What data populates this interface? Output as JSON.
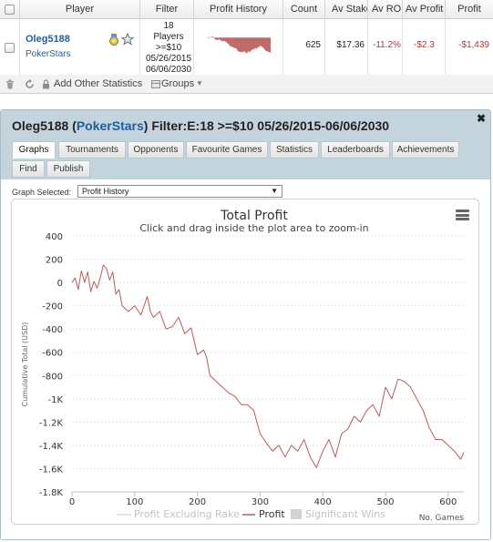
{
  "table": {
    "headers": [
      "Player",
      "Filter",
      "Profit History",
      "Count",
      "Av Stake",
      "Av ROI",
      "Av Profit",
      "Profit"
    ],
    "row": {
      "player": "Oleg5188",
      "site": "PokerStars",
      "filter_lines": [
        "18",
        "Players",
        ">=$10",
        "05/26/2015",
        "06/06/2030"
      ],
      "count": "625",
      "av_stake": "$17.36",
      "av_roi": "-11.2%",
      "av_profit": "-$2.3",
      "profit": "-$1,439"
    }
  },
  "toolbar": {
    "add_other_statistics": "Add Other Statistics",
    "groups": "Groups"
  },
  "panel": {
    "player": "Oleg5188",
    "site": "PokerStars",
    "filter": "Filter:E:18 >=$10 05/26/2015-06/06/2030",
    "tabs": [
      "Graphs",
      "Tournaments",
      "Opponents",
      "Favourite Games",
      "Statistics",
      "Leaderboards",
      "Achievements",
      "Find",
      "Publish"
    ],
    "active_tab": "Graphs",
    "graph_selected_label": "Graph Selected:",
    "graph_selected_value": "Profit History"
  },
  "chart_data": {
    "type": "line",
    "title": "Total Profit",
    "subtitle": "Click and drag inside the plot area to zoom-in",
    "ylabel": "Cumulative Total (USD)",
    "xlabel": "No. Games",
    "xlim": [
      0,
      625
    ],
    "ylim": [
      -1800,
      400
    ],
    "xticks": [
      0,
      100,
      200,
      300,
      400,
      500,
      600
    ],
    "yticks": [
      400,
      200,
      0,
      -200,
      -400,
      -600,
      -800,
      -1000,
      -1200,
      -1400,
      -1600,
      -1800
    ],
    "ytick_labels": [
      "400",
      "200",
      "0",
      "-200",
      "-400",
      "-600",
      "-800",
      "-1K",
      "-1.2K",
      "-1.4K",
      "-1.6K",
      "-1.8K"
    ],
    "grid": true,
    "legend": [
      "Profit Excluding Rake",
      "Profit",
      "Significant Wins"
    ],
    "series": [
      {
        "name": "Profit",
        "color": "#b85c5c",
        "x": [
          0,
          5,
          10,
          15,
          20,
          25,
          30,
          35,
          40,
          45,
          50,
          55,
          60,
          65,
          70,
          75,
          80,
          90,
          100,
          110,
          120,
          125,
          130,
          140,
          150,
          160,
          170,
          180,
          190,
          200,
          210,
          215,
          220,
          230,
          240,
          250,
          260,
          270,
          280,
          290,
          300,
          310,
          320,
          330,
          340,
          350,
          360,
          370,
          380,
          390,
          400,
          410,
          420,
          430,
          440,
          450,
          460,
          470,
          480,
          490,
          500,
          510,
          520,
          530,
          540,
          550,
          560,
          570,
          580,
          590,
          600,
          610,
          620,
          625
        ],
        "y": [
          0,
          40,
          -60,
          100,
          0,
          90,
          -80,
          10,
          -50,
          40,
          150,
          120,
          20,
          90,
          -100,
          -60,
          -200,
          -250,
          -200,
          -280,
          -120,
          -250,
          -300,
          -250,
          -400,
          -380,
          -300,
          -440,
          -390,
          -620,
          -580,
          -650,
          -800,
          -850,
          -900,
          -950,
          -980,
          -1050,
          -1050,
          -1100,
          -1300,
          -1380,
          -1450,
          -1400,
          -1500,
          -1400,
          -1450,
          -1350,
          -1500,
          -1590,
          -1450,
          -1350,
          -1500,
          -1300,
          -1260,
          -1150,
          -1200,
          -1100,
          -1050,
          -1150,
          -900,
          -1000,
          -830,
          -850,
          -900,
          -1000,
          -1100,
          -1250,
          -1350,
          -1350,
          -1400,
          -1450,
          -1520,
          -1460
        ]
      }
    ]
  }
}
